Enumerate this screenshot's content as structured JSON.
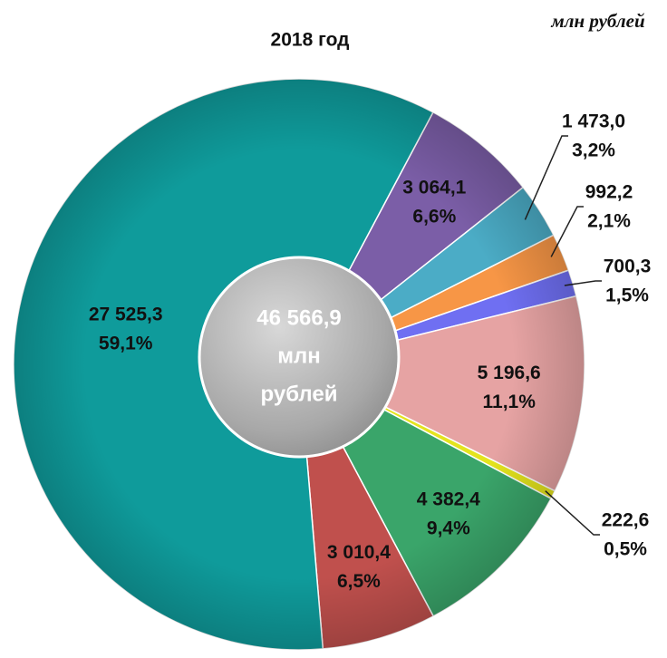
{
  "chart_data": {
    "type": "pie",
    "title": "2018 год",
    "subtitle": "млн рублей",
    "center_label": [
      "46 566,9",
      "млн",
      "рублей"
    ],
    "values": [
      3064.1,
      1473.0,
      992.2,
      700.3,
      5196.6,
      222.6,
      4382.4,
      3010.4,
      27525.3
    ],
    "value_labels": [
      "3 064,1",
      "1 473,0",
      "992,2",
      "700,3",
      "5 196,6",
      "222,6",
      "4 382,4",
      "3 010,4",
      "27 525,3"
    ],
    "percents": [
      6.6,
      3.2,
      2.1,
      1.5,
      11.1,
      0.5,
      9.4,
      6.5,
      59.1
    ],
    "percent_labels": [
      "6,6%",
      "3,2%",
      "2,1%",
      "1,5%",
      "11,1%",
      "0,5%",
      "9,4%",
      "6,5%",
      "59,1%"
    ],
    "colors": [
      "#7b5ea7",
      "#4bacc6",
      "#f79646",
      "#6f6ff2",
      "#e6a3a3",
      "#e4e41e",
      "#3aa56a",
      "#c0504d",
      "#0f9b9b"
    ]
  }
}
